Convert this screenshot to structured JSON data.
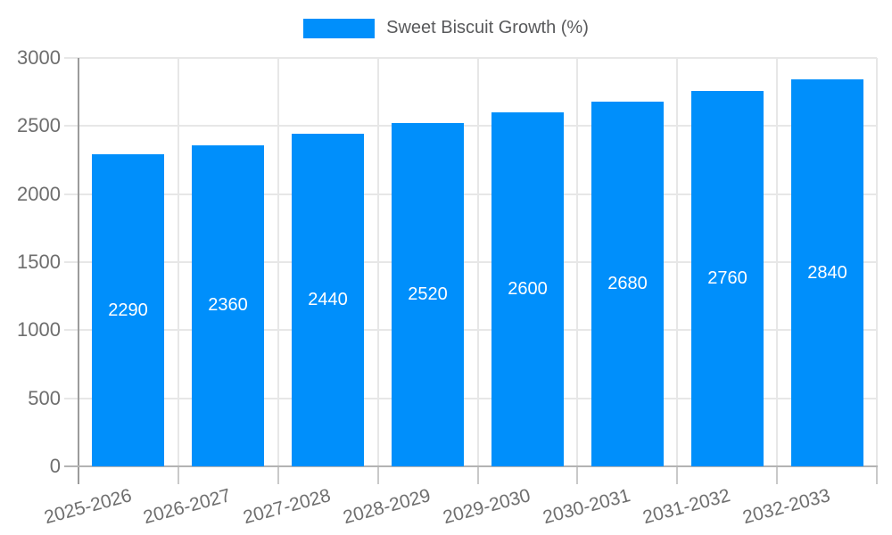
{
  "legend": {
    "label": "Sweet Biscuit Growth (%)"
  },
  "chart_data": {
    "type": "bar",
    "title": "Sweet Biscuit Growth (%)",
    "categories": [
      "2025-2026",
      "2026-2027",
      "2027-2028",
      "2028-2029",
      "2029-2030",
      "2030-2031",
      "2031-2032",
      "2032-2033"
    ],
    "series": [
      {
        "name": "Sweet Biscuit Growth (%)",
        "color": "#008FFB",
        "values": [
          2290,
          2360,
          2440,
          2520,
          2600,
          2680,
          2760,
          2840
        ]
      }
    ],
    "value_labels": [
      "2290",
      "2360",
      "2440",
      "2520",
      "2600",
      "2680",
      "2760",
      "2840"
    ],
    "xlabel": "",
    "ylabel": "",
    "ylim": [
      0,
      3000
    ],
    "yticks": [
      0,
      500,
      1000,
      1500,
      2000,
      2500,
      3000
    ],
    "grid": true,
    "legend_position": "top",
    "x_label_rotation_deg": -15
  },
  "colors": {
    "bar": "#008FFB",
    "grid": "#e7e7e7",
    "axis": "#9b9b9b",
    "baseline": "#b3b3b3",
    "tick": "#c9c9c9",
    "axis_label": "#6e6e6e",
    "legend_text": "#58595b",
    "value_label": "#ffffff",
    "background": "#ffffff"
  }
}
